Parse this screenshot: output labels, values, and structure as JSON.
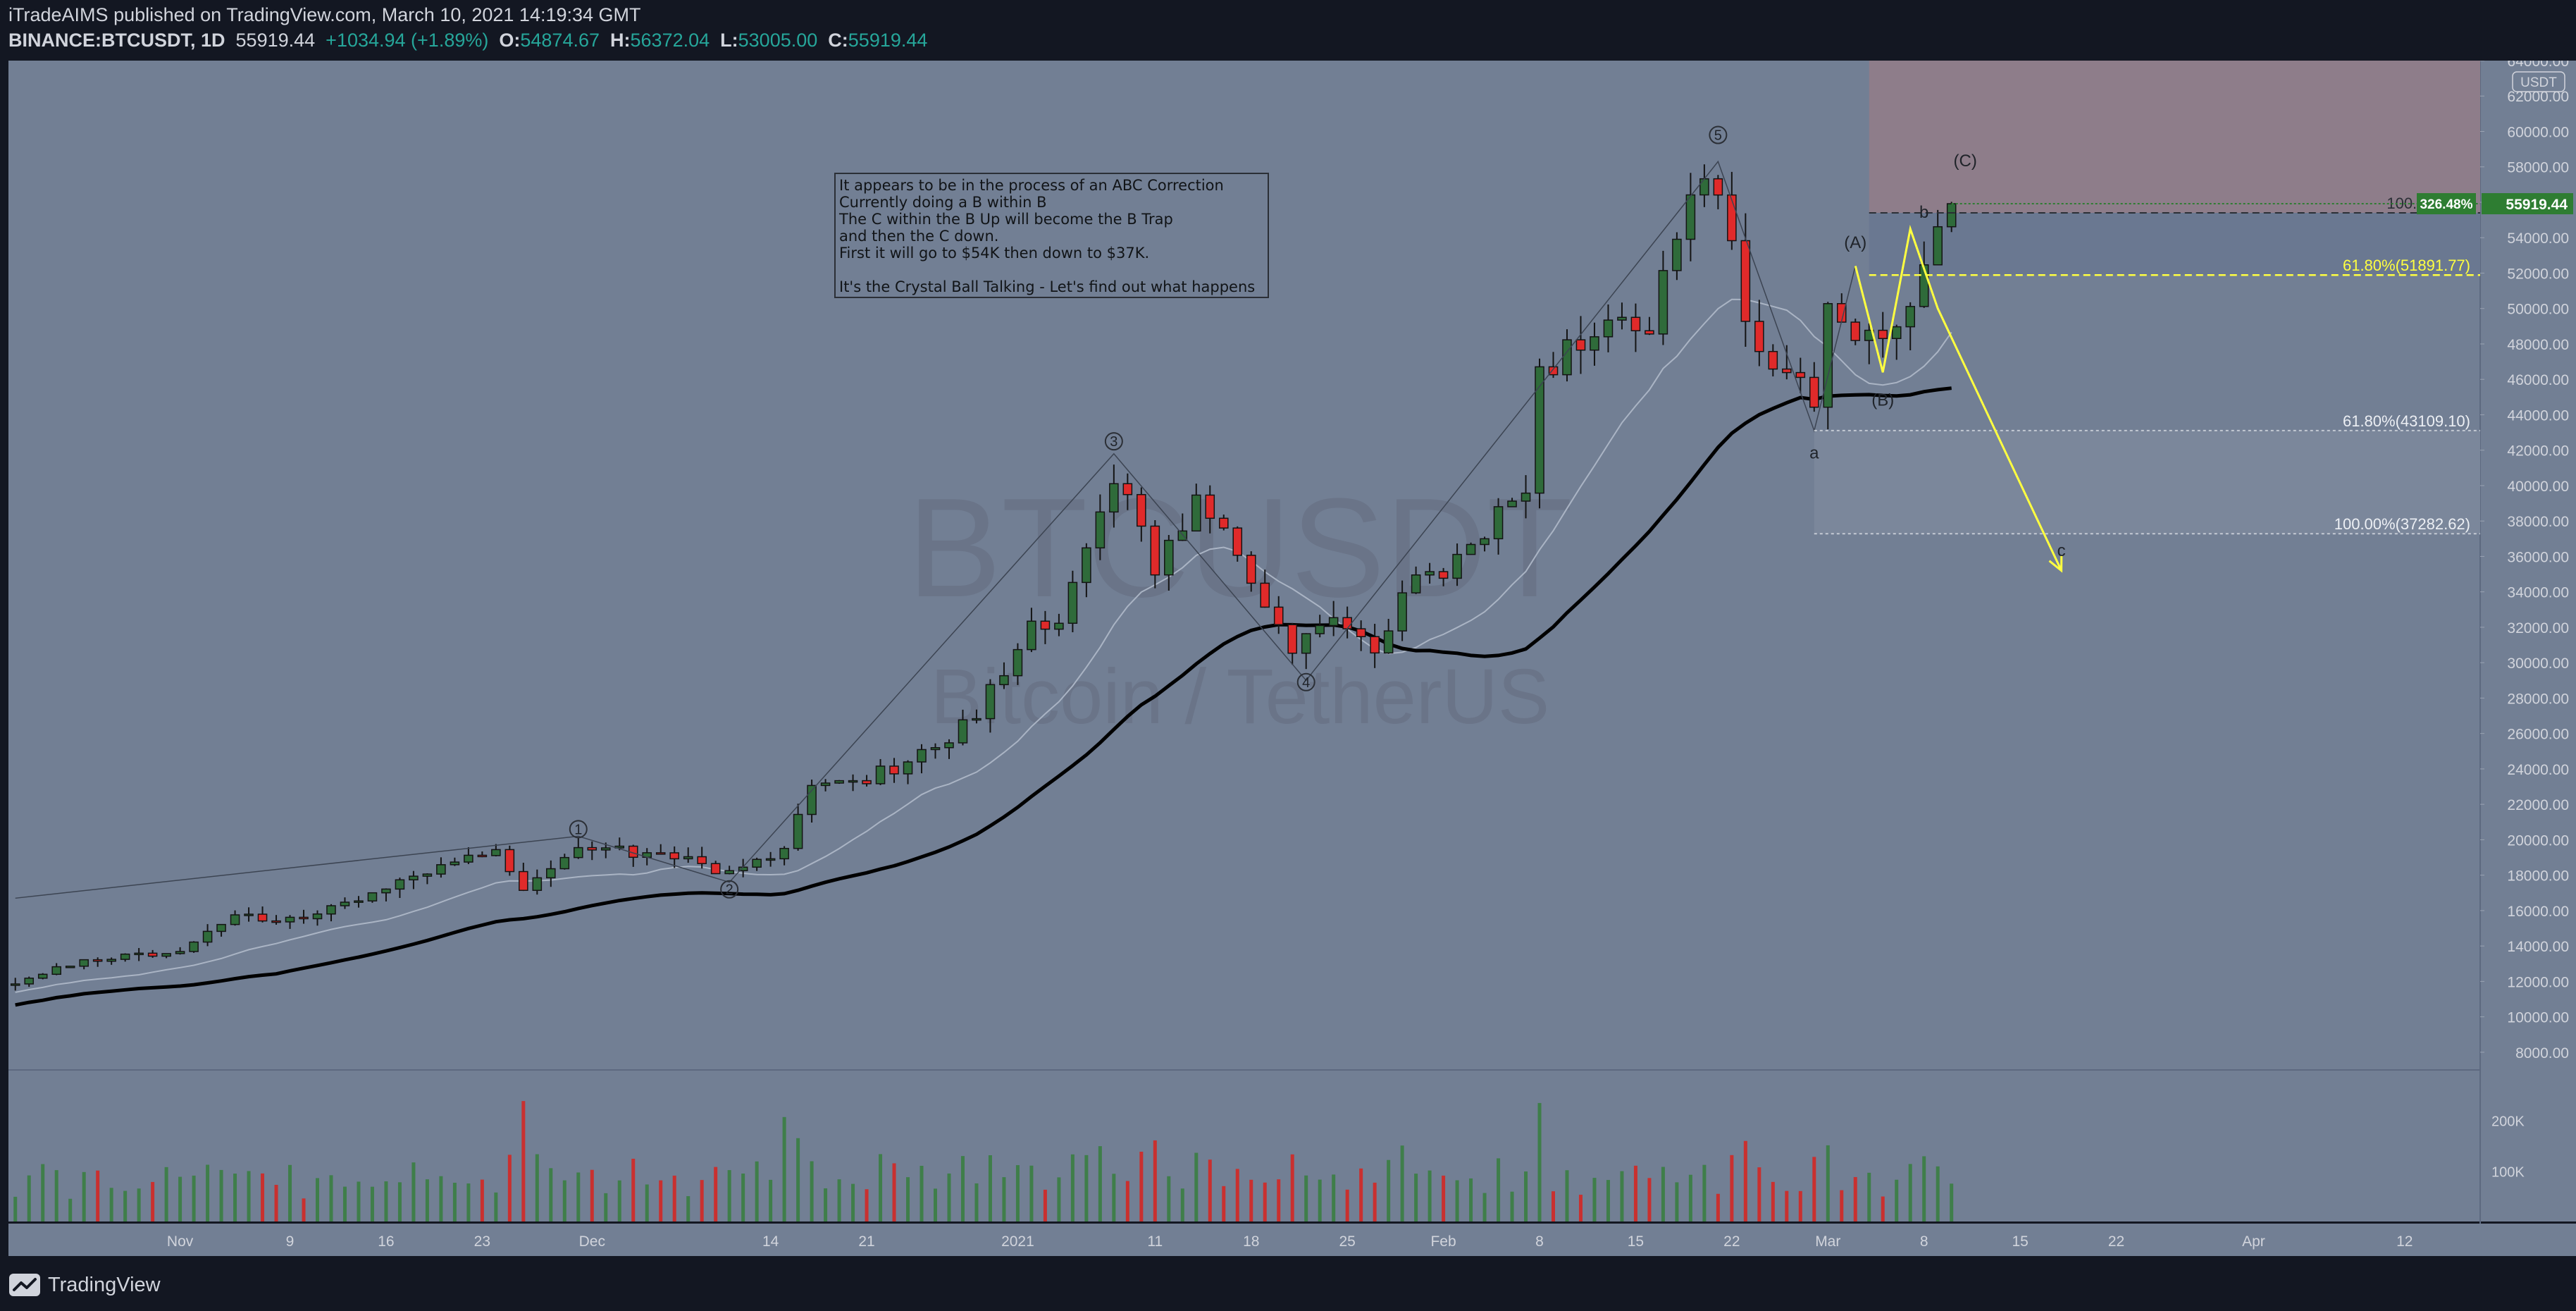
{
  "header": {
    "publisher": "iTradeAIMS",
    "published_text": "published on TradingView.com, March 10, 2021 14:19:34 GMT",
    "symbol": "BINANCE:BTCUSDT, 1D",
    "last": "55919.44",
    "change": "+1034.94 (+1.89%)",
    "open_label": "O:",
    "open_value": "54874.67",
    "high_label": "H:",
    "high_value": "56372.04",
    "low_label": "L:",
    "low_value": "53005.00",
    "close_label": "C:",
    "close_value": "55919.44"
  },
  "footer": {
    "brand": "TradingView",
    "logo_icon": "tradingview-logo-icon"
  },
  "colors": {
    "background": "#131722",
    "plot": "#727f94",
    "up_candle": "#2f6b3a",
    "down_candle": "#e02a2a",
    "projection": "#ffff40",
    "target_zone": "#8e7d8a",
    "price_tag": "#2e7d32",
    "text": "#d1d4dc"
  },
  "chart_data": {
    "type": "candlestick",
    "symbol": "BTCUSDT",
    "timeframe": "1D",
    "currency": "USDT",
    "watermark": {
      "symbol": "BTCUSDT",
      "description": "Bitcoin / TetherUS"
    },
    "ylim": [
      7000,
      64000
    ],
    "y_ticks": [
      8000,
      10000,
      12000,
      14000,
      16000,
      18000,
      20000,
      22000,
      24000,
      26000,
      28000,
      30000,
      32000,
      34000,
      36000,
      38000,
      40000,
      42000,
      44000,
      46000,
      48000,
      50000,
      52000,
      54000,
      56000,
      58000,
      60000,
      62000,
      64000
    ],
    "y_tick_labels": [
      "8000.00",
      "10000.00",
      "12000.00",
      "14000.00",
      "16000.00",
      "18000.00",
      "20000.00",
      "22000.00",
      "24000.00",
      "26000.00",
      "28000.00",
      "30000.00",
      "32000.00",
      "34000.00",
      "36000.00",
      "38000.00",
      "40000.00",
      "42000.00",
      "44000.00",
      "46000.00",
      "48000.00",
      "50000.00",
      "52000.00",
      "54000.00",
      "56000.00",
      "58000.00",
      "60000.00",
      "62000.00",
      "64000.00"
    ],
    "x_range": [
      "2020-10-20",
      "2021-04-18"
    ],
    "x_ticks": [
      {
        "date": "2020-11-01",
        "label": "Nov"
      },
      {
        "date": "2020-11-09",
        "label": "9"
      },
      {
        "date": "2020-11-16",
        "label": "16"
      },
      {
        "date": "2020-11-23",
        "label": "23"
      },
      {
        "date": "2020-12-01",
        "label": "Dec"
      },
      {
        "date": "2020-12-14",
        "label": "14"
      },
      {
        "date": "2020-12-21",
        "label": "21"
      },
      {
        "date": "2021-01-01",
        "label": "2021"
      },
      {
        "date": "2021-01-11",
        "label": "11"
      },
      {
        "date": "2021-01-18",
        "label": "18"
      },
      {
        "date": "2021-01-25",
        "label": "25"
      },
      {
        "date": "2021-02-01",
        "label": "Feb"
      },
      {
        "date": "2021-02-08",
        "label": "8"
      },
      {
        "date": "2021-02-15",
        "label": "15"
      },
      {
        "date": "2021-02-22",
        "label": "22"
      },
      {
        "date": "2021-03-01",
        "label": "Mar"
      },
      {
        "date": "2021-03-08",
        "label": "8"
      },
      {
        "date": "2021-03-15",
        "label": "15"
      },
      {
        "date": "2021-03-22",
        "label": "22"
      },
      {
        "date": "2021-04-01",
        "label": "Apr"
      },
      {
        "date": "2021-04-12",
        "label": "12"
      }
    ],
    "price_anchors": [
      [
        "2020-10-20",
        11900
      ],
      [
        "2020-10-24",
        12900
      ],
      [
        "2020-10-28",
        13400
      ],
      [
        "2020-11-01",
        13800
      ],
      [
        "2020-11-05",
        15600
      ],
      [
        "2020-11-09",
        15400
      ],
      [
        "2020-11-13",
        16300
      ],
      [
        "2020-11-17",
        17700
      ],
      [
        "2020-11-20",
        18600
      ],
      [
        "2020-11-24",
        19200
      ],
      [
        "2020-11-26",
        17100
      ],
      [
        "2020-11-30",
        19700
      ],
      [
        "2020-12-03",
        19400
      ],
      [
        "2020-12-07",
        19100
      ],
      [
        "2020-12-11",
        18000
      ],
      [
        "2020-12-15",
        19400
      ],
      [
        "2020-12-17",
        22800
      ],
      [
        "2020-12-21",
        23500
      ],
      [
        "2020-12-25",
        24700
      ],
      [
        "2020-12-29",
        27100
      ],
      [
        "2021-01-02",
        32100
      ],
      [
        "2021-01-04",
        31900
      ],
      [
        "2021-01-08",
        40500
      ],
      [
        "2021-01-11",
        35500
      ],
      [
        "2021-01-14",
        39300
      ],
      [
        "2021-01-17",
        36100
      ],
      [
        "2021-01-21",
        30800
      ],
      [
        "2021-01-24",
        32300
      ],
      [
        "2021-01-27",
        30400
      ],
      [
        "2021-01-29",
        34300
      ],
      [
        "2021-02-02",
        35500
      ],
      [
        "2021-02-05",
        38200
      ],
      [
        "2021-02-07",
        39200
      ],
      [
        "2021-02-08",
        46400
      ],
      [
        "2021-02-11",
        48000
      ],
      [
        "2021-02-14",
        48800
      ],
      [
        "2021-02-16",
        49200
      ],
      [
        "2021-02-19",
        55800
      ],
      [
        "2021-02-21",
        57400
      ],
      [
        "2021-02-22",
        54100
      ],
      [
        "2021-02-23",
        48800
      ],
      [
        "2021-02-26",
        46300
      ],
      [
        "2021-02-28",
        45200
      ],
      [
        "2021-03-01",
        49600
      ],
      [
        "2021-03-02",
        48400
      ],
      [
        "2021-03-04",
        48400
      ],
      [
        "2021-03-06",
        48900
      ],
      [
        "2021-03-07",
        50900
      ],
      [
        "2021-03-08",
        52400
      ],
      [
        "2021-03-09",
        54900
      ],
      [
        "2021-03-10",
        55919.44
      ]
    ],
    "volume_ticks": [
      {
        "value": 100000,
        "label": "100K"
      },
      {
        "value": 200000,
        "label": "200K"
      }
    ],
    "ma_fast_offsets": [
      0.96,
      0.9
    ],
    "wave_labels": [
      {
        "text": "1",
        "date": "2020-11-30",
        "price": 20600,
        "circled": true
      },
      {
        "text": "2",
        "date": "2020-12-11",
        "price": 17200,
        "circled": true
      },
      {
        "text": "3",
        "date": "2021-01-08",
        "price": 42500,
        "circled": true
      },
      {
        "text": "4",
        "date": "2021-01-22",
        "price": 28900,
        "circled": true
      },
      {
        "text": "5",
        "date": "2021-02-21",
        "price": 59800,
        "circled": true
      },
      {
        "text": "a",
        "date": "2021-02-28",
        "price": 41800,
        "circled": false
      },
      {
        "text": "(A)",
        "date": "2021-03-03",
        "price": 53700,
        "circled": false
      },
      {
        "text": "(B)",
        "date": "2021-03-05",
        "price": 44800,
        "circled": false
      },
      {
        "text": "b",
        "date": "2021-03-08",
        "price": 55400,
        "circled": false
      },
      {
        "text": "(C)",
        "date": "2021-03-11",
        "price": 58300,
        "circled": false
      },
      {
        "text": "c",
        "date": "2021-03-18",
        "price": 36300,
        "circled": false
      }
    ],
    "annotation": {
      "lines": [
        "It appears to be in the process of an ABC Correction",
        "Currently doing a B within B",
        "The C within the B Up will become the B Trap",
        "and then the C down.",
        "First it will go to $54K then down to $37K.",
        "",
        "It's the Crystal Ball Talking - Let's find out what happens"
      ]
    },
    "fib_levels": [
      {
        "label": "100.00%(55",
        "price": 55400,
        "style": "dashed"
      },
      {
        "label": "61.80%(51891.77)",
        "price": 51891.77,
        "style": "yellow"
      },
      {
        "label": "61.80%(43109.10)",
        "price": 43109.1,
        "style": "dotted"
      },
      {
        "label": "100.00%(37282.62)",
        "price": 37282.62,
        "style": "dotted"
      }
    ],
    "price_tag": {
      "pct": "326.48%",
      "value": "55919.44",
      "price": 55919.44
    },
    "projection_path": [
      [
        "2021-03-03",
        52400
      ],
      [
        "2021-03-05",
        46400
      ],
      [
        "2021-03-07",
        54500
      ],
      [
        "2021-03-09",
        50000
      ],
      [
        "2021-03-18",
        35200
      ]
    ]
  }
}
